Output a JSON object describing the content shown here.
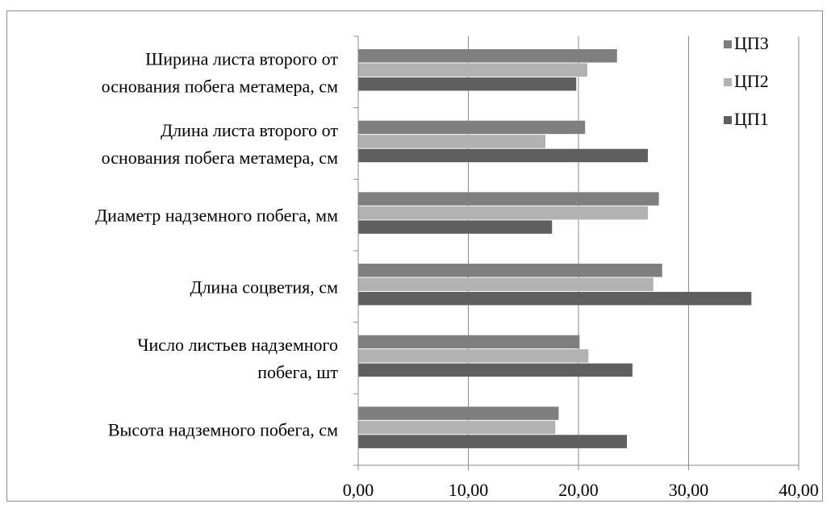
{
  "chart_data": {
    "type": "bar",
    "orientation": "horizontal",
    "categories": [
      [
        "Ширина листа второго от",
        "основания побега метамера, см"
      ],
      [
        "Длина листа второго от",
        "основания побега метамера, см"
      ],
      [
        "Диаметр надземного побега, мм"
      ],
      [
        "Длина соцветия,  см"
      ],
      [
        "Число листьев  надземного",
        "побега, шт"
      ],
      [
        "Высота надземного побега, см"
      ]
    ],
    "series": [
      {
        "name": "ЦП3",
        "color": "#7f7f7f",
        "values": [
          23.5,
          20.6,
          27.3,
          27.6,
          20.1,
          18.2
        ]
      },
      {
        "name": "ЦП2",
        "color": "#b2b2b2",
        "values": [
          20.8,
          17.0,
          26.3,
          26.8,
          20.9,
          17.9
        ]
      },
      {
        "name": "ЦП1",
        "color": "#5f5f5f",
        "values": [
          19.8,
          26.3,
          17.6,
          35.7,
          24.9,
          24.4
        ]
      }
    ],
    "xlim": [
      0,
      40
    ],
    "xticks": [
      "0,00",
      "10,00",
      "20,00",
      "30,00",
      "40,00"
    ],
    "grid": true,
    "legend_position": "top-right",
    "title": "",
    "xlabel": "",
    "ylabel": ""
  }
}
